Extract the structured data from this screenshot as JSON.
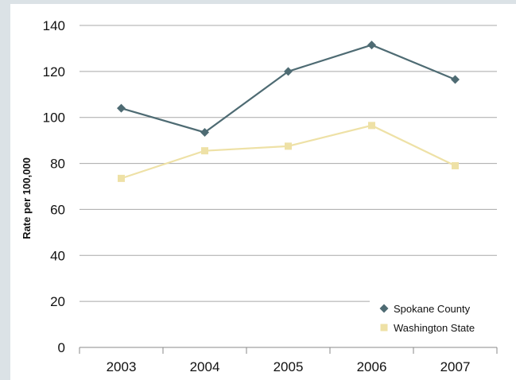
{
  "chart_data": {
    "type": "line",
    "title": "",
    "xlabel": "",
    "ylabel": "Rate per 100,000",
    "categories": [
      "2003",
      "2004",
      "2005",
      "2006",
      "2007"
    ],
    "ylim": [
      0,
      140
    ],
    "yticks": [
      0,
      20,
      40,
      60,
      80,
      100,
      120,
      140
    ],
    "grid": true,
    "legend_position": "bottom-right",
    "series": [
      {
        "name": "Spokane County",
        "values": [
          104,
          93.5,
          120,
          131.5,
          116.5
        ],
        "color": "#4e6b73",
        "marker": "diamond"
      },
      {
        "name": "Washington State",
        "values": [
          73.5,
          85.5,
          87.5,
          96.5,
          79
        ],
        "color": "#eee1a6",
        "marker": "square"
      }
    ]
  }
}
